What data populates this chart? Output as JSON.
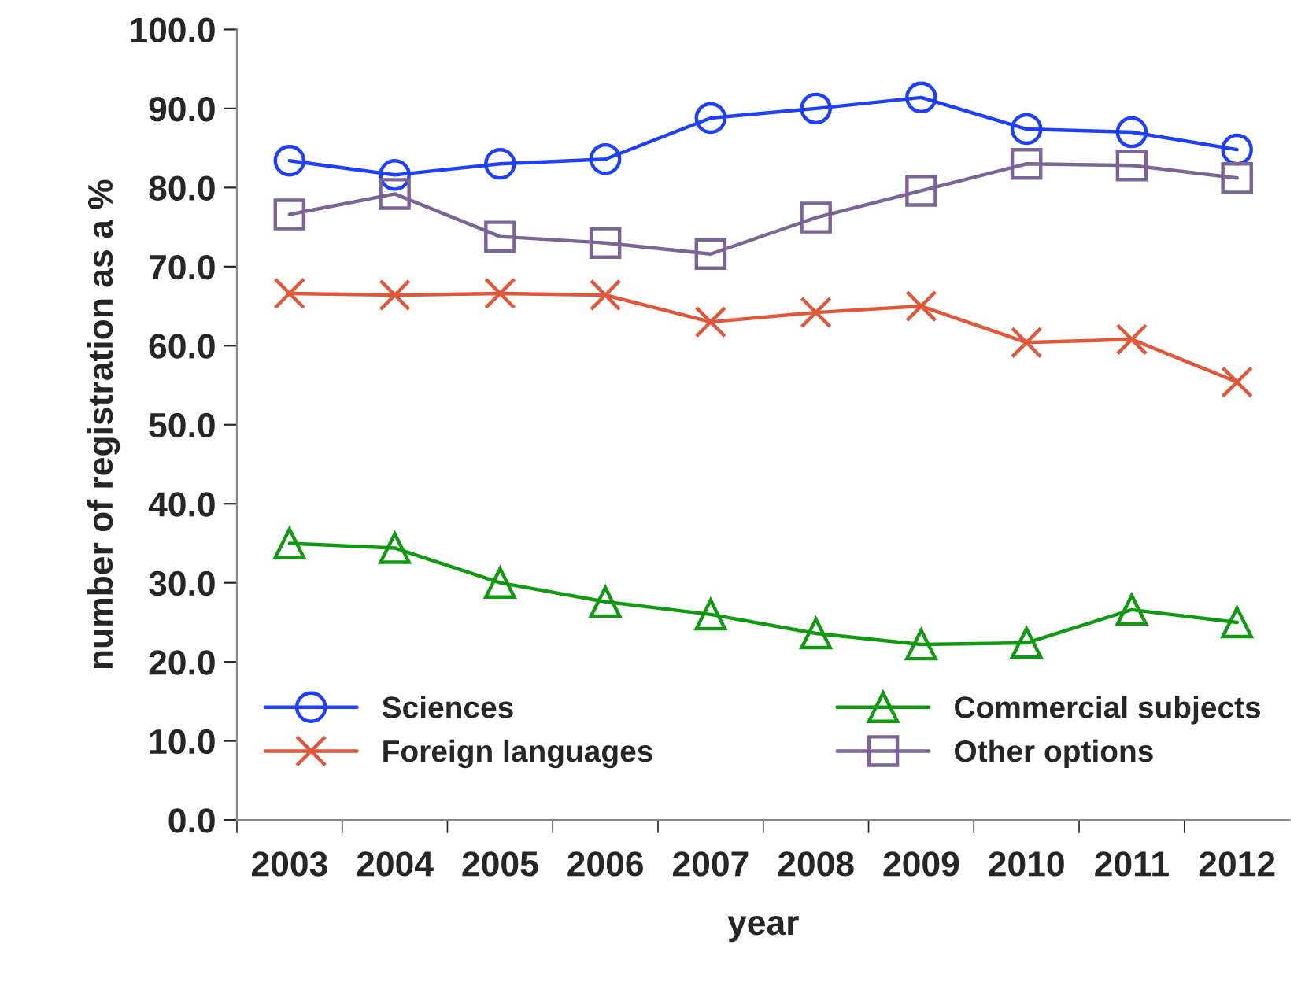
{
  "chart_data": {
    "type": "line",
    "xlabel": "year",
    "ylabel": "number of registration as a %",
    "categories": [
      "2003",
      "2004",
      "2005",
      "2006",
      "2007",
      "2008",
      "2009",
      "2010",
      "2011",
      "2012"
    ],
    "series": [
      {
        "name": "Sciences",
        "color": "#1f3fff",
        "marker": "circle",
        "values": [
          83.4,
          81.6,
          83.0,
          83.6,
          88.8,
          90.0,
          91.4,
          87.4,
          87.0,
          84.8
        ]
      },
      {
        "name": "Foreign languages",
        "color": "#e0573a",
        "marker": "cross",
        "values": [
          66.6,
          66.4,
          66.6,
          66.4,
          63.0,
          64.2,
          65.0,
          60.4,
          60.8,
          55.4
        ]
      },
      {
        "name": "Commercial subjects",
        "color": "#119a11",
        "marker": "triangle",
        "values": [
          35.0,
          34.4,
          30.0,
          27.6,
          26.0,
          23.6,
          22.2,
          22.4,
          26.6,
          25.0
        ]
      },
      {
        "name": "Other options",
        "color": "#7b6496",
        "marker": "square",
        "values": [
          76.6,
          79.2,
          73.8,
          73.0,
          71.6,
          76.2,
          79.6,
          83.0,
          82.8,
          81.2
        ]
      }
    ],
    "ylim": [
      0,
      100
    ],
    "yticks": [
      {
        "value": 0,
        "label": "0.0"
      },
      {
        "value": 10,
        "label": "10.0"
      },
      {
        "value": 20,
        "label": "20.0"
      },
      {
        "value": 30,
        "label": "30.0"
      },
      {
        "value": 40,
        "label": "40.0"
      },
      {
        "value": 50,
        "label": "50.0"
      },
      {
        "value": 60,
        "label": "60.0"
      },
      {
        "value": 70,
        "label": "70.0"
      },
      {
        "value": 80,
        "label": "80.0"
      },
      {
        "value": 90,
        "label": "90.0"
      },
      {
        "value": 100,
        "label": "100.0"
      }
    ],
    "grid": false,
    "legend": "bottom",
    "line_style": "solid"
  }
}
